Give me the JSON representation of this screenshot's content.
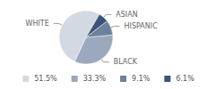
{
  "chart_data": {
    "type": "pie",
    "categories": [
      "WHITE",
      "BLACK",
      "HISPANIC",
      "ASIAN"
    ],
    "values": [
      51.5,
      33.3,
      9.1,
      6.1
    ],
    "value_labels": [
      "51.5%",
      "33.3%",
      "9.1%",
      "6.1%"
    ],
    "colors": [
      "#d3d9e3",
      "#9ba8bd",
      "#6d819c",
      "#3b5478"
    ],
    "legend": "bottom"
  }
}
